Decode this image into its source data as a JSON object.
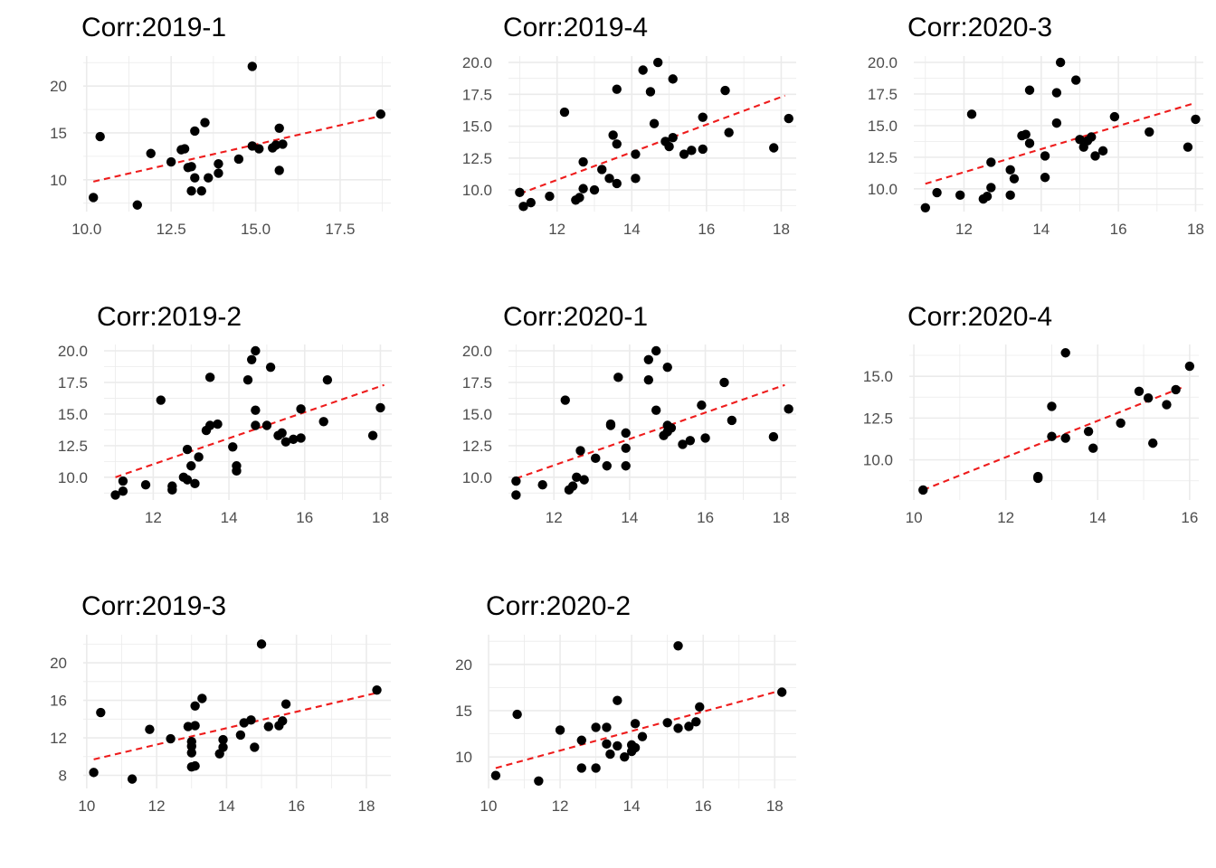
{
  "colors": {
    "point": "#000000",
    "trend": "#ee1c1c",
    "grid": "#ebebeb",
    "tick_text": "#4d4d4d"
  },
  "chart_data": [
    {
      "type": "scatter",
      "title": "Corr:2019-1",
      "xlim": [
        9.9,
        19.0
      ],
      "ylim": [
        6.6,
        23.2
      ],
      "xticks": [
        10.0,
        12.5,
        15.0,
        17.5
      ],
      "xtick_labels": [
        "10.0",
        "12.5",
        "15.0",
        "17.5"
      ],
      "yticks": [
        10,
        15,
        20
      ],
      "ytick_labels": [
        "10",
        "15",
        "20"
      ],
      "trend": {
        "x": [
          10.2,
          18.7
        ],
        "y": [
          9.8,
          16.8
        ]
      },
      "points": [
        [
          10.2,
          8.1
        ],
        [
          10.4,
          14.6
        ],
        [
          11.5,
          7.3
        ],
        [
          11.9,
          12.8
        ],
        [
          12.5,
          11.9
        ],
        [
          12.8,
          13.2
        ],
        [
          12.9,
          13.3
        ],
        [
          13.0,
          11.3
        ],
        [
          13.1,
          8.8
        ],
        [
          13.1,
          11.4
        ],
        [
          13.2,
          15.2
        ],
        [
          13.2,
          10.2
        ],
        [
          13.4,
          8.8
        ],
        [
          13.5,
          16.1
        ],
        [
          13.6,
          10.2
        ],
        [
          13.9,
          10.7
        ],
        [
          13.9,
          11.7
        ],
        [
          14.5,
          12.2
        ],
        [
          14.9,
          22.1
        ],
        [
          14.9,
          13.6
        ],
        [
          15.1,
          13.3
        ],
        [
          15.5,
          13.4
        ],
        [
          15.6,
          13.7
        ],
        [
          15.7,
          15.5
        ],
        [
          15.7,
          11.0
        ],
        [
          15.8,
          13.8
        ],
        [
          18.7,
          17.0
        ]
      ]
    },
    {
      "type": "scatter",
      "title": "Corr:2019-4",
      "xlim": [
        10.7,
        18.4
      ],
      "ylim": [
        8.3,
        20.5
      ],
      "xticks": [
        12,
        14,
        16,
        18
      ],
      "xtick_labels": [
        "12",
        "14",
        "16",
        "18"
      ],
      "yticks": [
        10.0,
        12.5,
        15.0,
        17.5,
        20.0
      ],
      "ytick_labels": [
        "10.0",
        "12.5",
        "15.0",
        "17.5",
        "20.0"
      ],
      "trend": {
        "x": [
          11.0,
          18.1
        ],
        "y": [
          9.7,
          17.4
        ]
      },
      "points": [
        [
          11.0,
          9.8
        ],
        [
          11.1,
          8.7
        ],
        [
          11.3,
          9.0
        ],
        [
          11.8,
          9.5
        ],
        [
          12.2,
          16.1
        ],
        [
          12.5,
          9.2
        ],
        [
          12.6,
          9.4
        ],
        [
          12.7,
          10.1
        ],
        [
          12.7,
          12.2
        ],
        [
          13.0,
          10.0
        ],
        [
          13.2,
          11.6
        ],
        [
          13.4,
          10.9
        ],
        [
          13.5,
          14.3
        ],
        [
          13.6,
          10.5
        ],
        [
          13.6,
          13.6
        ],
        [
          13.6,
          17.9
        ],
        [
          14.1,
          10.9
        ],
        [
          14.1,
          12.8
        ],
        [
          14.3,
          19.4
        ],
        [
          14.5,
          17.7
        ],
        [
          14.6,
          15.2
        ],
        [
          14.7,
          20.0
        ],
        [
          14.9,
          13.8
        ],
        [
          15.0,
          13.4
        ],
        [
          15.1,
          14.1
        ],
        [
          15.1,
          18.7
        ],
        [
          15.4,
          12.8
        ],
        [
          15.6,
          13.1
        ],
        [
          15.9,
          15.7
        ],
        [
          15.9,
          13.2
        ],
        [
          16.5,
          17.8
        ],
        [
          16.6,
          14.5
        ],
        [
          17.8,
          13.3
        ],
        [
          18.2,
          15.6
        ]
      ]
    },
    {
      "type": "scatter",
      "title": "Corr:2020-3",
      "xlim": [
        10.7,
        18.2
      ],
      "ylim": [
        8.2,
        20.5
      ],
      "xticks": [
        12,
        14,
        16,
        18
      ],
      "xtick_labels": [
        "12",
        "14",
        "16",
        "18"
      ],
      "yticks": [
        10.0,
        12.5,
        15.0,
        17.5,
        20.0
      ],
      "ytick_labels": [
        "10.0",
        "12.5",
        "15.0",
        "17.5",
        "20.0"
      ],
      "trend": {
        "x": [
          11.0,
          18.0
        ],
        "y": [
          10.4,
          16.8
        ]
      },
      "points": [
        [
          11.0,
          8.5
        ],
        [
          11.3,
          9.7
        ],
        [
          11.9,
          9.5
        ],
        [
          12.2,
          15.9
        ],
        [
          12.5,
          9.2
        ],
        [
          12.6,
          9.4
        ],
        [
          12.7,
          10.1
        ],
        [
          12.7,
          12.1
        ],
        [
          13.2,
          9.5
        ],
        [
          13.2,
          11.5
        ],
        [
          13.3,
          10.8
        ],
        [
          13.5,
          14.2
        ],
        [
          13.6,
          14.3
        ],
        [
          13.7,
          17.8
        ],
        [
          13.7,
          13.6
        ],
        [
          14.1,
          10.9
        ],
        [
          14.1,
          12.6
        ],
        [
          14.4,
          17.6
        ],
        [
          14.4,
          15.2
        ],
        [
          14.5,
          20.0
        ],
        [
          14.9,
          18.6
        ],
        [
          15.0,
          13.9
        ],
        [
          15.1,
          13.3
        ],
        [
          15.2,
          13.8
        ],
        [
          15.3,
          14.1
        ],
        [
          15.4,
          12.6
        ],
        [
          15.6,
          13.0
        ],
        [
          15.9,
          15.7
        ],
        [
          16.8,
          14.5
        ],
        [
          17.8,
          13.3
        ],
        [
          18.0,
          15.5
        ]
      ]
    },
    {
      "type": "scatter",
      "title": "Corr:2019-2",
      "xlim": [
        10.7,
        18.3
      ],
      "ylim": [
        8.2,
        20.5
      ],
      "xticks": [
        12,
        14,
        16,
        18
      ],
      "xtick_labels": [
        "12",
        "14",
        "16",
        "18"
      ],
      "yticks": [
        10.0,
        12.5,
        15.0,
        17.5,
        20.0
      ],
      "ytick_labels": [
        "10.0",
        "12.5",
        "15.0",
        "17.5",
        "20.0"
      ],
      "trend": {
        "x": [
          11.0,
          18.1
        ],
        "y": [
          10.0,
          17.3
        ]
      },
      "points": [
        [
          11.0,
          8.6
        ],
        [
          11.2,
          9.7
        ],
        [
          11.2,
          8.9
        ],
        [
          11.8,
          9.4
        ],
        [
          12.2,
          16.1
        ],
        [
          12.5,
          9.3
        ],
        [
          12.5,
          9.0
        ],
        [
          12.8,
          10.0
        ],
        [
          12.9,
          12.2
        ],
        [
          12.9,
          9.8
        ],
        [
          13.0,
          10.9
        ],
        [
          13.1,
          9.5
        ],
        [
          13.2,
          11.6
        ],
        [
          13.4,
          13.7
        ],
        [
          13.5,
          17.9
        ],
        [
          13.5,
          14.1
        ],
        [
          13.7,
          14.2
        ],
        [
          14.1,
          12.4
        ],
        [
          14.2,
          10.9
        ],
        [
          14.2,
          10.5
        ],
        [
          14.5,
          17.7
        ],
        [
          14.6,
          19.3
        ],
        [
          14.7,
          20.0
        ],
        [
          14.7,
          15.3
        ],
        [
          14.7,
          14.1
        ],
        [
          15.0,
          14.1
        ],
        [
          15.1,
          18.7
        ],
        [
          15.3,
          13.3
        ],
        [
          15.4,
          13.5
        ],
        [
          15.5,
          12.8
        ],
        [
          15.7,
          13.0
        ],
        [
          15.9,
          15.4
        ],
        [
          15.9,
          13.1
        ],
        [
          16.5,
          14.4
        ],
        [
          16.6,
          17.7
        ],
        [
          17.8,
          13.3
        ],
        [
          18.0,
          15.5
        ]
      ]
    },
    {
      "type": "scatter",
      "title": "Corr:2020-1",
      "xlim": [
        10.8,
        18.4
      ],
      "ylim": [
        8.2,
        20.5
      ],
      "xticks": [
        12,
        14,
        16,
        18
      ],
      "xtick_labels": [
        "12",
        "14",
        "16",
        "18"
      ],
      "yticks": [
        10.0,
        12.5,
        15.0,
        17.5,
        20.0
      ],
      "ytick_labels": [
        "10.0",
        "12.5",
        "15.0",
        "17.5",
        "20.0"
      ],
      "trend": {
        "x": [
          11.0,
          18.1
        ],
        "y": [
          9.9,
          17.3
        ]
      },
      "points": [
        [
          11.0,
          8.6
        ],
        [
          11.0,
          9.7
        ],
        [
          11.7,
          9.4
        ],
        [
          12.3,
          16.1
        ],
        [
          12.4,
          9.0
        ],
        [
          12.5,
          9.3
        ],
        [
          12.6,
          10.0
        ],
        [
          12.8,
          9.8
        ],
        [
          12.7,
          12.1
        ],
        [
          13.1,
          11.5
        ],
        [
          13.4,
          10.9
        ],
        [
          13.5,
          14.1
        ],
        [
          13.5,
          14.2
        ],
        [
          13.7,
          17.9
        ],
        [
          13.9,
          13.5
        ],
        [
          13.9,
          12.3
        ],
        [
          13.9,
          10.9
        ],
        [
          14.5,
          17.7
        ],
        [
          14.5,
          19.3
        ],
        [
          14.7,
          20.0
        ],
        [
          14.7,
          15.3
        ],
        [
          14.9,
          13.3
        ],
        [
          15.0,
          14.1
        ],
        [
          15.0,
          13.6
        ],
        [
          15.0,
          18.7
        ],
        [
          15.1,
          13.9
        ],
        [
          15.4,
          12.6
        ],
        [
          15.6,
          12.9
        ],
        [
          15.9,
          15.7
        ],
        [
          16.0,
          13.1
        ],
        [
          16.5,
          17.5
        ],
        [
          16.7,
          14.5
        ],
        [
          17.8,
          13.2
        ],
        [
          18.2,
          15.4
        ]
      ]
    },
    {
      "type": "scatter",
      "title": "Corr:2020-4",
      "xlim": [
        9.9,
        16.2
      ],
      "ylim": [
        7.6,
        16.9
      ],
      "xticks": [
        10,
        12,
        14,
        16
      ],
      "xtick_labels": [
        "10",
        "12",
        "14",
        "16"
      ],
      "yticks": [
        10.0,
        12.5,
        15.0
      ],
      "ytick_labels": [
        "10.0",
        "12.5",
        "15.0"
      ],
      "trend": {
        "x": [
          10.2,
          15.9
        ],
        "y": [
          8.2,
          14.4
        ]
      },
      "points": [
        [
          10.2,
          8.2
        ],
        [
          12.7,
          9.0
        ],
        [
          12.7,
          8.9
        ],
        [
          13.0,
          13.2
        ],
        [
          13.0,
          11.4
        ],
        [
          13.3,
          16.4
        ],
        [
          13.3,
          11.3
        ],
        [
          13.8,
          11.7
        ],
        [
          13.9,
          10.7
        ],
        [
          14.5,
          12.2
        ],
        [
          14.9,
          14.1
        ],
        [
          15.1,
          13.7
        ],
        [
          15.2,
          11.0
        ],
        [
          15.5,
          13.3
        ],
        [
          15.7,
          14.2
        ],
        [
          16.0,
          15.6
        ]
      ]
    },
    {
      "type": "scatter",
      "title": "Corr:2019-3",
      "xlim": [
        9.9,
        18.7
      ],
      "ylim": [
        6.6,
        23.0
      ],
      "xticks": [
        10,
        12,
        14,
        16,
        18
      ],
      "xtick_labels": [
        "10",
        "12",
        "14",
        "16",
        "18"
      ],
      "yticks": [
        8,
        12,
        16,
        20
      ],
      "ytick_labels": [
        "8",
        "12",
        "16",
        "20"
      ],
      "trend": {
        "x": [
          10.2,
          18.3
        ],
        "y": [
          9.7,
          16.8
        ]
      },
      "points": [
        [
          10.2,
          8.3
        ],
        [
          10.4,
          14.7
        ],
        [
          11.3,
          7.6
        ],
        [
          11.8,
          12.9
        ],
        [
          12.4,
          11.9
        ],
        [
          12.9,
          13.2
        ],
        [
          13.0,
          11.6
        ],
        [
          13.0,
          11.1
        ],
        [
          13.0,
          10.4
        ],
        [
          13.0,
          8.9
        ],
        [
          13.1,
          13.3
        ],
        [
          13.1,
          9.0
        ],
        [
          13.1,
          15.4
        ],
        [
          13.3,
          16.2
        ],
        [
          13.8,
          10.3
        ],
        [
          13.9,
          11.0
        ],
        [
          13.9,
          11.8
        ],
        [
          14.4,
          12.3
        ],
        [
          14.5,
          13.6
        ],
        [
          14.7,
          13.9
        ],
        [
          14.8,
          11.0
        ],
        [
          15.0,
          22.0
        ],
        [
          15.2,
          13.2
        ],
        [
          15.5,
          13.3
        ],
        [
          15.6,
          13.8
        ],
        [
          15.7,
          15.6
        ],
        [
          18.3,
          17.1
        ]
      ]
    },
    {
      "type": "scatter",
      "title": "Corr:2020-2",
      "xlim": [
        10.0,
        18.6
      ],
      "ylim": [
        6.6,
        23.2
      ],
      "xticks": [
        10,
        12,
        14,
        16,
        18
      ],
      "xtick_labels": [
        "10",
        "12",
        "14",
        "16",
        "18"
      ],
      "yticks": [
        10,
        15,
        20
      ],
      "ytick_labels": [
        "10",
        "15",
        "20"
      ],
      "trend": {
        "x": [
          10.2,
          18.1
        ],
        "y": [
          8.8,
          17.1
        ]
      },
      "points": [
        [
          10.2,
          8.0
        ],
        [
          10.8,
          14.6
        ],
        [
          11.4,
          7.4
        ],
        [
          12.0,
          12.9
        ],
        [
          12.6,
          8.8
        ],
        [
          12.6,
          11.8
        ],
        [
          13.0,
          8.8
        ],
        [
          13.0,
          13.2
        ],
        [
          13.3,
          11.4
        ],
        [
          13.3,
          13.2
        ],
        [
          13.4,
          10.3
        ],
        [
          13.6,
          11.2
        ],
        [
          13.6,
          16.1
        ],
        [
          13.8,
          10.0
        ],
        [
          14.0,
          10.6
        ],
        [
          14.0,
          11.3
        ],
        [
          14.1,
          13.6
        ],
        [
          14.1,
          11.0
        ],
        [
          14.3,
          12.2
        ],
        [
          15.0,
          13.7
        ],
        [
          15.3,
          22.0
        ],
        [
          15.3,
          13.1
        ],
        [
          15.6,
          13.3
        ],
        [
          15.8,
          13.8
        ],
        [
          15.9,
          15.4
        ],
        [
          18.2,
          17.0
        ]
      ]
    }
  ]
}
